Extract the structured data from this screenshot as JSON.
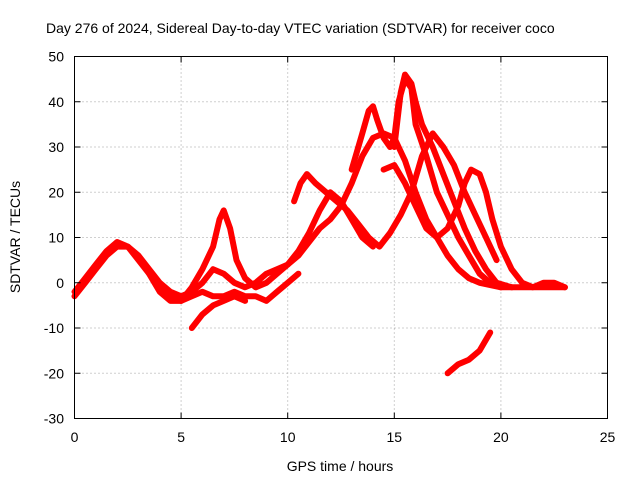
{
  "chart_data": {
    "type": "scatter",
    "title": "Day 276 of 2024, Sidereal Day-to-day VTEC variation (SDTVAR) for receiver coco",
    "xlabel": "GPS time / hours",
    "ylabel": "SDTVAR / TECUs",
    "xlim": [
      0,
      25
    ],
    "ylim": [
      -30,
      50
    ],
    "xticks": [
      "0",
      "5",
      "10",
      "15",
      "20",
      "25"
    ],
    "yticks": [
      "-30",
      "-20",
      "-10",
      "0",
      "10",
      "20",
      "30",
      "40",
      "50"
    ],
    "grid": true,
    "marker": "+",
    "color": "#ff0000",
    "series": [
      {
        "name": "trace-1",
        "points": [
          [
            0,
            -3
          ],
          [
            0.5,
            0
          ],
          [
            1,
            3
          ],
          [
            1.5,
            6
          ],
          [
            2,
            8
          ],
          [
            2.5,
            8
          ],
          [
            3,
            6
          ],
          [
            3.5,
            3
          ],
          [
            4,
            0
          ],
          [
            4.5,
            -2
          ],
          [
            5,
            -3
          ],
          [
            5.5,
            -2
          ],
          [
            6,
            0
          ],
          [
            6.5,
            3
          ],
          [
            7,
            2
          ],
          [
            7.5,
            0
          ],
          [
            8,
            -1
          ],
          [
            8.5,
            0
          ],
          [
            9,
            2
          ],
          [
            9.5,
            3
          ],
          [
            10,
            4
          ],
          [
            10.5,
            6
          ],
          [
            11,
            9
          ],
          [
            11.5,
            12
          ],
          [
            12,
            14
          ],
          [
            12.5,
            17
          ],
          [
            13,
            22
          ],
          [
            13.5,
            28
          ],
          [
            14,
            32
          ],
          [
            14.5,
            33
          ],
          [
            15,
            32
          ],
          [
            15.5,
            27
          ],
          [
            16,
            20
          ],
          [
            16.5,
            14
          ],
          [
            17,
            10
          ],
          [
            17.5,
            6
          ],
          [
            18,
            3
          ],
          [
            18.5,
            1
          ],
          [
            19,
            0
          ],
          [
            20,
            -1
          ],
          [
            21,
            -1
          ],
          [
            22,
            -1
          ],
          [
            23,
            -1
          ]
        ]
      },
      {
        "name": "trace-2",
        "points": [
          [
            0,
            -2
          ],
          [
            0.5,
            1
          ],
          [
            1,
            4
          ],
          [
            1.5,
            7
          ],
          [
            2,
            9
          ],
          [
            2.5,
            8
          ],
          [
            3,
            5
          ],
          [
            3.5,
            2
          ],
          [
            4,
            -2
          ],
          [
            4.5,
            -4
          ],
          [
            5,
            -4
          ],
          [
            5.5,
            -1
          ],
          [
            6,
            3
          ],
          [
            6.5,
            8
          ],
          [
            6.8,
            14
          ],
          [
            7,
            16
          ],
          [
            7.3,
            12
          ],
          [
            7.6,
            5
          ],
          [
            8,
            1
          ],
          [
            8.5,
            -1
          ],
          [
            9,
            0
          ],
          [
            9.5,
            2
          ],
          [
            10,
            4
          ],
          [
            10.5,
            7
          ],
          [
            11,
            11
          ],
          [
            11.5,
            16
          ],
          [
            12,
            20
          ],
          [
            12.5,
            18
          ],
          [
            13,
            14
          ],
          [
            13.5,
            10
          ],
          [
            14,
            8
          ]
        ]
      },
      {
        "name": "trace-3",
        "points": [
          [
            3.5,
            2
          ],
          [
            4,
            -1
          ],
          [
            4.5,
            -3
          ],
          [
            5,
            -4
          ],
          [
            5.5,
            -3
          ],
          [
            6,
            -2
          ],
          [
            6.5,
            -3
          ],
          [
            7,
            -3
          ],
          [
            7.5,
            -2
          ],
          [
            8,
            -3
          ],
          [
            8.5,
            -3
          ],
          [
            9,
            -4
          ],
          [
            9.5,
            -2
          ],
          [
            10,
            0
          ],
          [
            10.5,
            2
          ]
        ]
      },
      {
        "name": "trace-4",
        "points": [
          [
            13,
            25
          ],
          [
            13.5,
            33
          ],
          [
            13.8,
            38
          ],
          [
            14,
            39
          ],
          [
            14.2,
            36
          ],
          [
            14.5,
            32
          ],
          [
            14.8,
            30
          ],
          [
            15,
            32
          ],
          [
            15.2,
            40
          ],
          [
            15.5,
            45
          ],
          [
            15.8,
            43
          ],
          [
            16,
            35
          ],
          [
            16.5,
            28
          ],
          [
            17,
            20
          ],
          [
            17.5,
            15
          ],
          [
            18,
            10
          ],
          [
            18.5,
            6
          ],
          [
            19,
            2
          ],
          [
            19.5,
            0
          ],
          [
            20,
            -1
          ]
        ]
      },
      {
        "name": "trace-5",
        "points": [
          [
            15,
            30
          ],
          [
            15.3,
            42
          ],
          [
            15.5,
            46
          ],
          [
            15.8,
            44
          ],
          [
            16,
            40
          ],
          [
            16.3,
            35
          ],
          [
            16.8,
            30
          ],
          [
            17.3,
            24
          ],
          [
            17.8,
            18
          ],
          [
            18.3,
            12
          ],
          [
            18.8,
            7
          ],
          [
            19.3,
            3
          ],
          [
            19.8,
            0
          ],
          [
            20.5,
            -1
          ]
        ]
      },
      {
        "name": "trace-6",
        "points": [
          [
            10.3,
            18
          ],
          [
            10.6,
            22
          ],
          [
            10.9,
            24
          ],
          [
            11.3,
            22
          ],
          [
            11.8,
            20
          ],
          [
            12.3,
            18
          ],
          [
            12.8,
            16
          ],
          [
            13.3,
            13
          ],
          [
            13.8,
            10
          ],
          [
            14.3,
            8
          ],
          [
            14.8,
            11
          ],
          [
            15.3,
            15
          ],
          [
            15.8,
            20
          ],
          [
            16.3,
            28
          ],
          [
            16.8,
            33
          ],
          [
            17.3,
            30
          ],
          [
            17.8,
            26
          ],
          [
            18.3,
            20
          ],
          [
            18.8,
            15
          ],
          [
            19.3,
            10
          ],
          [
            19.8,
            5
          ]
        ]
      },
      {
        "name": "trace-7",
        "points": [
          [
            14.5,
            25
          ],
          [
            15,
            26
          ],
          [
            15.5,
            22
          ],
          [
            16,
            17
          ],
          [
            16.5,
            12
          ],
          [
            17,
            10
          ],
          [
            17.5,
            12
          ],
          [
            18,
            17
          ],
          [
            18.3,
            22
          ],
          [
            18.6,
            25
          ],
          [
            19,
            24
          ],
          [
            19.3,
            20
          ],
          [
            19.6,
            14
          ],
          [
            20,
            8
          ],
          [
            20.5,
            3
          ],
          [
            21,
            0
          ],
          [
            21.5,
            -1
          ],
          [
            22,
            0
          ],
          [
            22.5,
            0
          ],
          [
            23,
            -1
          ]
        ]
      },
      {
        "name": "trace-8",
        "points": [
          [
            5.5,
            -10
          ],
          [
            6,
            -7
          ],
          [
            6.5,
            -5
          ],
          [
            7,
            -4
          ],
          [
            7.5,
            -3
          ],
          [
            8,
            -4
          ]
        ]
      },
      {
        "name": "trace-9",
        "points": [
          [
            17.5,
            -20
          ],
          [
            18,
            -18
          ],
          [
            18.5,
            -17
          ],
          [
            19,
            -15
          ],
          [
            19.5,
            -11
          ]
        ]
      }
    ]
  }
}
